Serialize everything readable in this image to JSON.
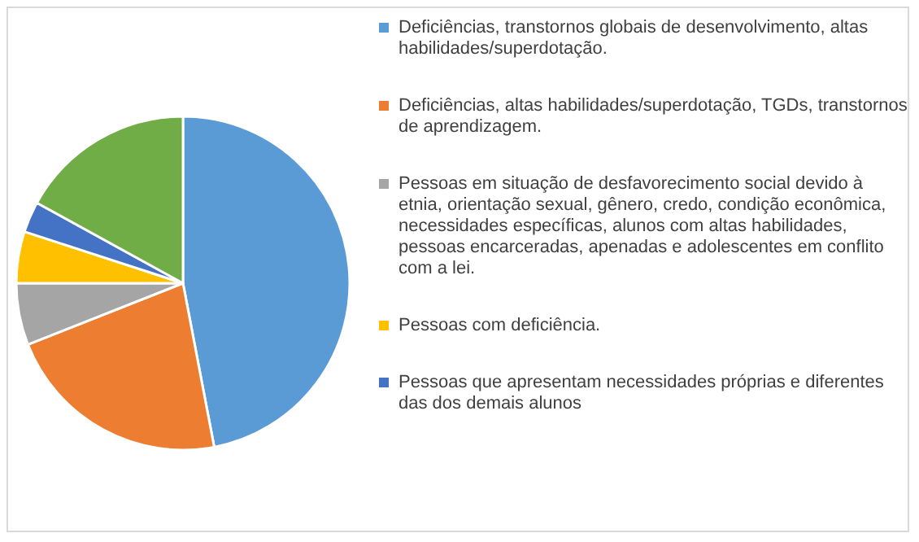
{
  "chart_data": {
    "type": "pie",
    "categories": [
      "Deficiências, transtornos globais de desenvolvimento, altas habilidades/superdotação.",
      "Deficiências, altas habilidades/superdotação, TGDs, transtornos de aprendizagem.",
      "Pessoas em situação de desfavorecimento social devido à etnia, orientação sexual, gênero, credo, condição econômica, necessidades específicas, alunos com altas habilidades, pessoas encarceradas, apenadas e adolescentes em conflito com a lei.",
      "Pessoas com deficiência.",
      "Pessoas que apresentam necessidades próprias e diferentes das dos demais alunos",
      null
    ],
    "values": [
      47,
      22,
      6,
      5,
      3,
      17
    ],
    "colors": [
      "#5b9bd5",
      "#ed7d31",
      "#a5a5a5",
      "#ffc000",
      "#4472c4",
      "#70ad47"
    ],
    "legend": "right"
  }
}
